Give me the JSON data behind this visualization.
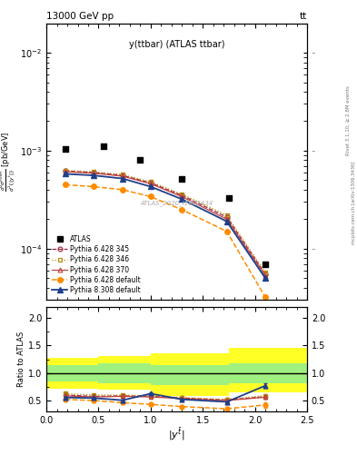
{
  "title_left": "13000 GeV pp",
  "title_right": "tt",
  "plot_title": "y(ttbar) (ATLAS ttbar)",
  "watermark": "ATLAS_2020_I1801434",
  "right_label1": "Rivet 3.1.10, ≥ 2.8M events",
  "right_label2": "mcplots.cern.ch [arXiv:1306.3436]",
  "x_atlas": [
    0.18,
    0.55,
    0.9,
    1.3,
    1.75,
    2.1
  ],
  "y_atlas": [
    0.00105,
    0.0011,
    0.0008,
    0.00052,
    0.00033,
    7e-05
  ],
  "x_mc": [
    0.18,
    0.45,
    0.73,
    1.0,
    1.3,
    1.73,
    2.1
  ],
  "y_p6428_345": [
    0.00062,
    0.0006,
    0.00056,
    0.00047,
    0.00035,
    0.00021,
    5.5e-05
  ],
  "y_p6428_346": [
    0.00063,
    0.00061,
    0.00057,
    0.00048,
    0.00036,
    0.00022,
    5.7e-05
  ],
  "y_p6428_370": [
    0.00061,
    0.00059,
    0.00055,
    0.00046,
    0.00034,
    0.0002,
    5.3e-05
  ],
  "y_p6428_def": [
    0.00045,
    0.00043,
    0.0004,
    0.00034,
    0.00025,
    0.00015,
    3.2e-05
  ],
  "y_p8308_def": [
    0.00058,
    0.00056,
    0.00052,
    0.00043,
    0.00032,
    0.00019,
    5e-05
  ],
  "x_mc_ratio": [
    0.18,
    0.45,
    0.73,
    1.0,
    1.3,
    1.73,
    2.1
  ],
  "ratio_p6428_345": [
    0.6,
    0.575,
    0.585,
    0.575,
    0.545,
    0.51,
    0.57
  ],
  "ratio_p6428_346": [
    0.625,
    0.6,
    0.6,
    0.585,
    0.555,
    0.52,
    0.59
  ],
  "ratio_p6428_370": [
    0.585,
    0.565,
    0.575,
    0.565,
    0.535,
    0.5,
    0.56
  ],
  "ratio_p6428_def": [
    0.52,
    0.5,
    0.46,
    0.43,
    0.39,
    0.35,
    0.42
  ],
  "ratio_p8308_def": [
    0.555,
    0.545,
    0.505,
    0.625,
    0.52,
    0.475,
    0.77
  ],
  "ratio_p6428_345_err": [
    0.018,
    0.018,
    0.018,
    0.018,
    0.02,
    0.022,
    0.03
  ],
  "ratio_p6428_346_err": [
    0.018,
    0.018,
    0.018,
    0.018,
    0.02,
    0.022,
    0.03
  ],
  "ratio_p6428_370_err": [
    0.018,
    0.018,
    0.018,
    0.018,
    0.02,
    0.022,
    0.03
  ],
  "ratio_p6428_def_err": [
    0.025,
    0.025,
    0.025,
    0.025,
    0.03,
    0.035,
    0.05
  ],
  "ratio_p8308_def_err": [
    0.018,
    0.018,
    0.018,
    0.025,
    0.02,
    0.022,
    0.04
  ],
  "band_edges": [
    0.0,
    0.5,
    1.0,
    1.75,
    2.5
  ],
  "band_green_lo": [
    0.85,
    0.82,
    0.78,
    0.82
  ],
  "band_green_hi": [
    1.15,
    1.18,
    1.15,
    1.18
  ],
  "band_yellow_lo": [
    0.72,
    0.7,
    0.58,
    0.65
  ],
  "band_yellow_hi": [
    1.28,
    1.3,
    1.35,
    1.45
  ],
  "color_p6428_345": "#9B2335",
  "color_p6428_346": "#B8860B",
  "color_p6428_370": "#C04040",
  "color_p6428_def": "#FF8C00",
  "color_p8308_def": "#1E3F8B",
  "ylim_main": [
    3e-05,
    0.02
  ],
  "ylim_ratio": [
    0.3,
    2.2
  ],
  "xlim_main": [
    0.0,
    2.5
  ],
  "xlim_ratio": [
    0.0,
    2.5
  ]
}
